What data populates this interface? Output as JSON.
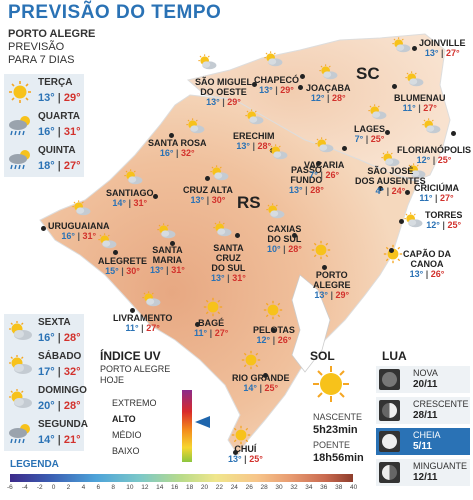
{
  "title": "PREVISÃO DO TEMPO",
  "header": {
    "city": "PORTO ALEGRE",
    "line1": "PREVISÃO",
    "line2": "PARA 7 DIAS"
  },
  "forecast_days": [
    {
      "day": "TERÇA",
      "min": "13°",
      "max": "29°",
      "icon": "sun-icon"
    },
    {
      "day": "QUARTA",
      "min": "16°",
      "max": "31°",
      "icon": "storm-rain-icon"
    },
    {
      "day": "QUINTA",
      "min": "18°",
      "max": "27°",
      "icon": "storm-rain-icon"
    },
    {
      "day": "SEXTA",
      "min": "16°",
      "max": "28°",
      "icon": "partly-cloudy-icon"
    },
    {
      "day": "SÁBADO",
      "min": "17°",
      "max": "32°",
      "icon": "partly-cloudy-icon"
    },
    {
      "day": "DOMINGO",
      "min": "20°",
      "max": "28°",
      "icon": "partly-cloudy-icon"
    },
    {
      "day": "SEGUNDA",
      "min": "14°",
      "max": "21°",
      "icon": "storm-rain-icon"
    }
  ],
  "states": {
    "rs": "RS",
    "sc": "SC"
  },
  "cities": [
    {
      "name": "SÃO MIGUEL\nDO OESTE",
      "min": "13°",
      "max": "29°",
      "icon": "partly-cloudy-icon"
    },
    {
      "name": "CHAPECÓ",
      "min": "13°",
      "max": "29°",
      "icon": "partly-cloudy-icon"
    },
    {
      "name": "JOAÇABA",
      "min": "12°",
      "max": "28°",
      "icon": "partly-cloudy-icon"
    },
    {
      "name": "JOINVILLE",
      "min": "13°",
      "max": "27°",
      "icon": "partly-cloudy-icon"
    },
    {
      "name": "BLUMENAU",
      "min": "11°",
      "max": "27°",
      "icon": "partly-cloudy-icon"
    },
    {
      "name": "LAGES",
      "min": "7°",
      "max": "25°",
      "icon": "partly-cloudy-icon"
    },
    {
      "name": "FLORIANÓPOLIS",
      "min": "12°",
      "max": "25°",
      "icon": "partly-cloudy-icon"
    },
    {
      "name": "SANTA ROSA",
      "min": "16°",
      "max": "32°",
      "icon": "partly-cloudy-icon"
    },
    {
      "name": "ERECHIM",
      "min": "13°",
      "max": "28°",
      "icon": "partly-cloudy-icon"
    },
    {
      "name": "PASSO\nFUNDO",
      "min": "13°",
      "max": "28°",
      "icon": "partly-cloudy-icon"
    },
    {
      "name": "VACARIA",
      "min": "7°",
      "max": "26°",
      "icon": "partly-cloudy-icon"
    },
    {
      "name": "CRICIÚMA",
      "min": "11°",
      "max": "27°",
      "icon": "partly-cloudy-icon"
    },
    {
      "name": "SANTIAGO",
      "min": "14°",
      "max": "31°",
      "icon": "partly-cloudy-icon"
    },
    {
      "name": "CRUZ ALTA",
      "min": "13°",
      "max": "30°",
      "icon": "partly-cloudy-icon"
    },
    {
      "name": "SÃO JOSÉ\nDOS AUSENTES",
      "min": "4°",
      "max": "24°",
      "icon": "partly-cloudy-icon"
    },
    {
      "name": "TORRES",
      "min": "12°",
      "max": "25°",
      "icon": "partly-cloudy-icon"
    },
    {
      "name": "URUGUAIANA",
      "min": "16°",
      "max": "31°",
      "icon": "partly-cloudy-icon"
    },
    {
      "name": "CAXIAS\nDO SUL",
      "min": "10°",
      "max": "28°",
      "icon": "partly-cloudy-icon"
    },
    {
      "name": "CAPÃO DA\nCANOA",
      "min": "13°",
      "max": "26°",
      "icon": "sun-icon"
    },
    {
      "name": "ALEGRETE",
      "min": "15°",
      "max": "30°",
      "icon": "partly-cloudy-icon"
    },
    {
      "name": "SANTA\nMARIA",
      "min": "13°",
      "max": "31°",
      "icon": "partly-cloudy-icon"
    },
    {
      "name": "SANTA\nCRUZ\nDO SUL",
      "min": "13°",
      "max": "31°",
      "icon": "partly-cloudy-icon"
    },
    {
      "name": "PORTO\nALEGRE",
      "min": "13°",
      "max": "29°",
      "icon": "sun-icon"
    },
    {
      "name": "LIVRAMENTO",
      "min": "11°",
      "max": "27°",
      "icon": "partly-cloudy-icon"
    },
    {
      "name": "BAGÉ",
      "min": "11°",
      "max": "27°",
      "icon": "sun-icon"
    },
    {
      "name": "PELOTAS",
      "min": "12°",
      "max": "26°",
      "icon": "sun-icon"
    },
    {
      "name": "RIO GRANDE",
      "min": "14°",
      "max": "25°",
      "icon": "sun-icon"
    },
    {
      "name": "CHUÍ",
      "min": "13°",
      "max": "25°",
      "icon": "sun-icon"
    }
  ],
  "uv": {
    "title": "ÍNDICE UV",
    "sub1": "PORTO ALEGRE",
    "sub2": "HOJE",
    "levels": [
      "EXTREMO",
      "ALTO",
      "MÉDIO",
      "BAIXO"
    ],
    "current": "ALTO"
  },
  "sun": {
    "title": "SOL",
    "rise_label": "NASCENTE",
    "rise": "5h23min",
    "set_label": "POENTE",
    "set": "18h56min"
  },
  "moon": {
    "title": "LUA",
    "phases": [
      {
        "phase": "NOVA",
        "date": "20/11",
        "icon": "new-moon-icon"
      },
      {
        "phase": "CRESCENTE",
        "date": "28/11",
        "icon": "first-quarter-moon-icon"
      },
      {
        "phase": "CHEIA",
        "date": "5/11",
        "icon": "full-moon-icon",
        "active": true
      },
      {
        "phase": "MINGUANTE",
        "date": "12/11",
        "icon": "last-quarter-moon-icon"
      }
    ]
  },
  "legend": {
    "title": "LEGENDA",
    "ticks": [
      "-6",
      "-4",
      "-2",
      "0",
      "2",
      "4",
      "6",
      "8",
      "10",
      "12",
      "14",
      "16",
      "18",
      "20",
      "22",
      "24",
      "26",
      "28",
      "30",
      "32",
      "34",
      "36",
      "38",
      "40"
    ]
  },
  "colors": {
    "accent": "#2a72b5",
    "max_temp": "#d2312c",
    "min_temp": "#2a72b5"
  }
}
